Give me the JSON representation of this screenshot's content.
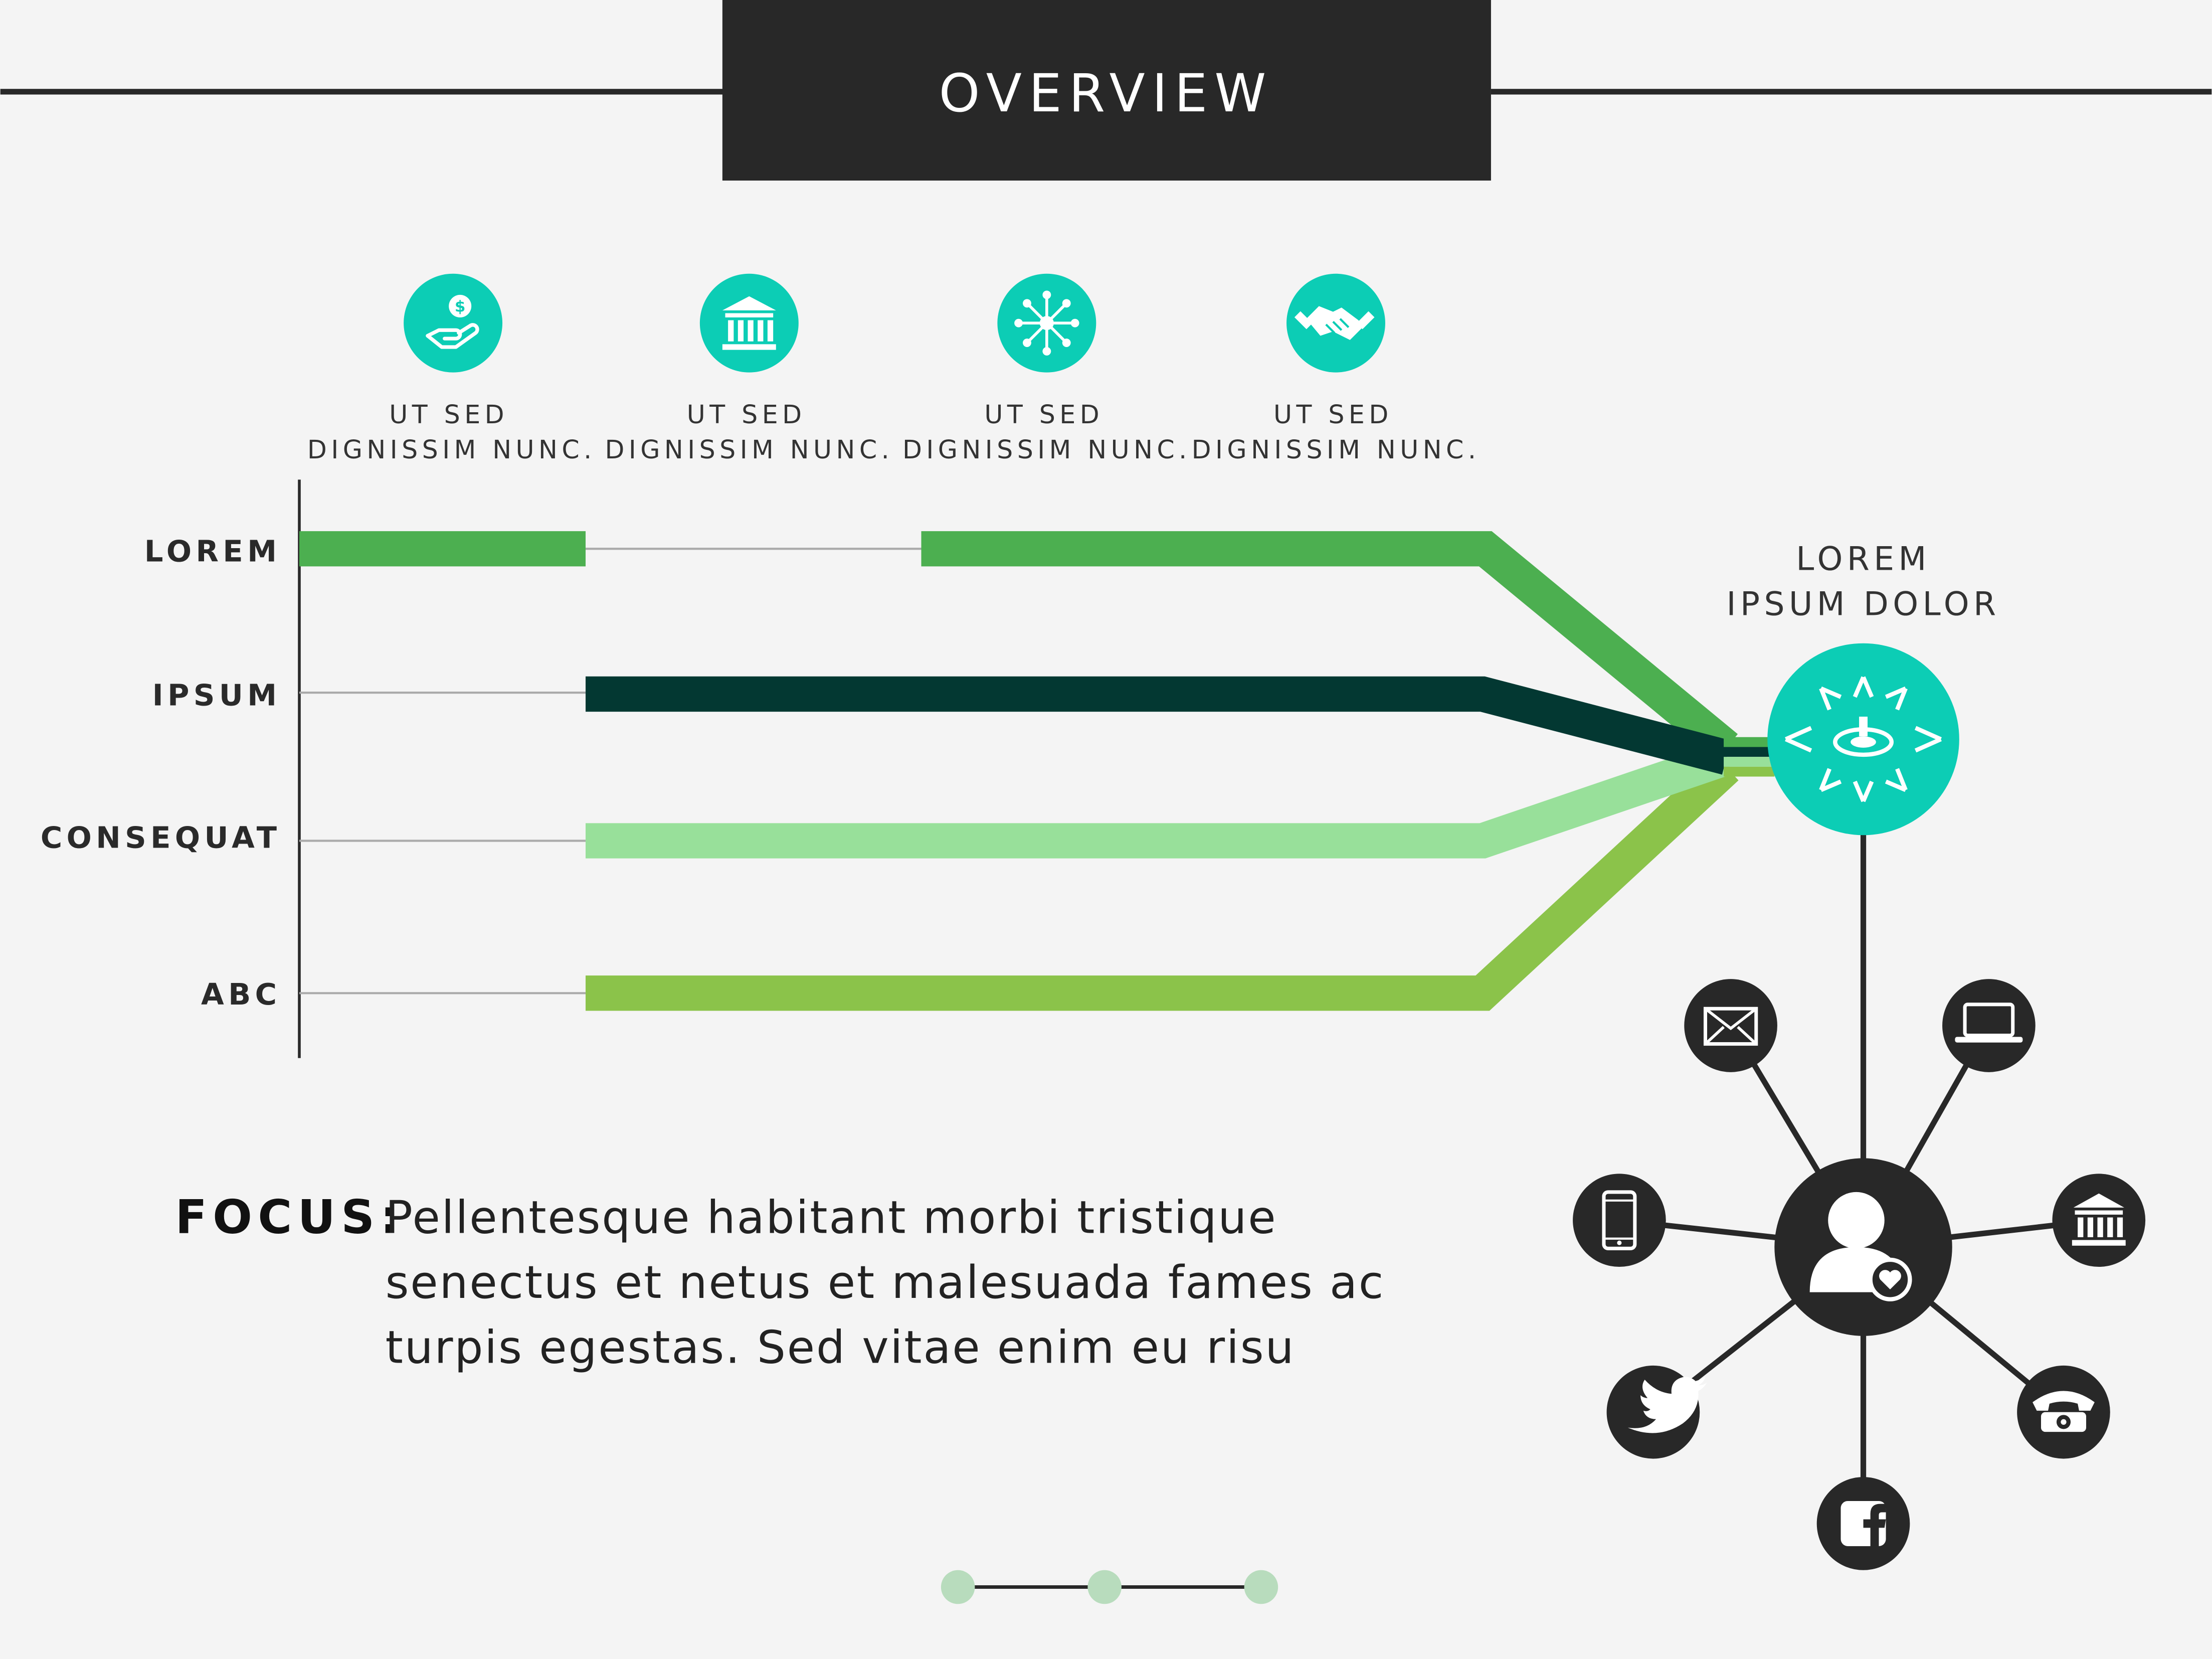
{
  "header": {
    "title": "OVERVIEW"
  },
  "columns": [
    {
      "icon": "hand-coin-icon",
      "line1": "UT SED",
      "line2": "DIGNISSIM NUNC."
    },
    {
      "icon": "bank-icon",
      "line1": "UT SED",
      "line2": "DIGNISSIM NUNC."
    },
    {
      "icon": "network-icon",
      "line1": "UT SED",
      "line2": "DIGNISSIM NUNC."
    },
    {
      "icon": "handshake-icon",
      "line1": "UT SED",
      "line2": "DIGNISSIM NUNC."
    }
  ],
  "rows": [
    {
      "label": "LOREM",
      "color": "#4caf50"
    },
    {
      "label": "IPSUM",
      "color": "#033832"
    },
    {
      "label": "CONSEQUAT",
      "color": "#98e09a"
    },
    {
      "label": "ABC",
      "color": "#8bc34a"
    }
  ],
  "hub": {
    "line1": "LOREM",
    "line2": "IPSUM DOLOR",
    "icon": "target-burst-icon",
    "color": "#0ccdb5"
  },
  "network": {
    "center_icon": "user-heart-icon",
    "nodes": [
      "mail-icon",
      "laptop-icon",
      "mobile-phone-icon",
      "bank-icon",
      "twitter-icon",
      "telephone-icon",
      "facebook-icon"
    ]
  },
  "focus": {
    "label": "FOCUS:",
    "lines": [
      "Pellentesque habitant morbi tristique",
      "senectus et netus et malesuada fames ac",
      "turpis egestas. Sed vitae enim eu risu"
    ]
  },
  "colors": {
    "dark": "#282828",
    "teal": "#0ccdb5",
    "pager_dot": "#b8dcbd"
  }
}
